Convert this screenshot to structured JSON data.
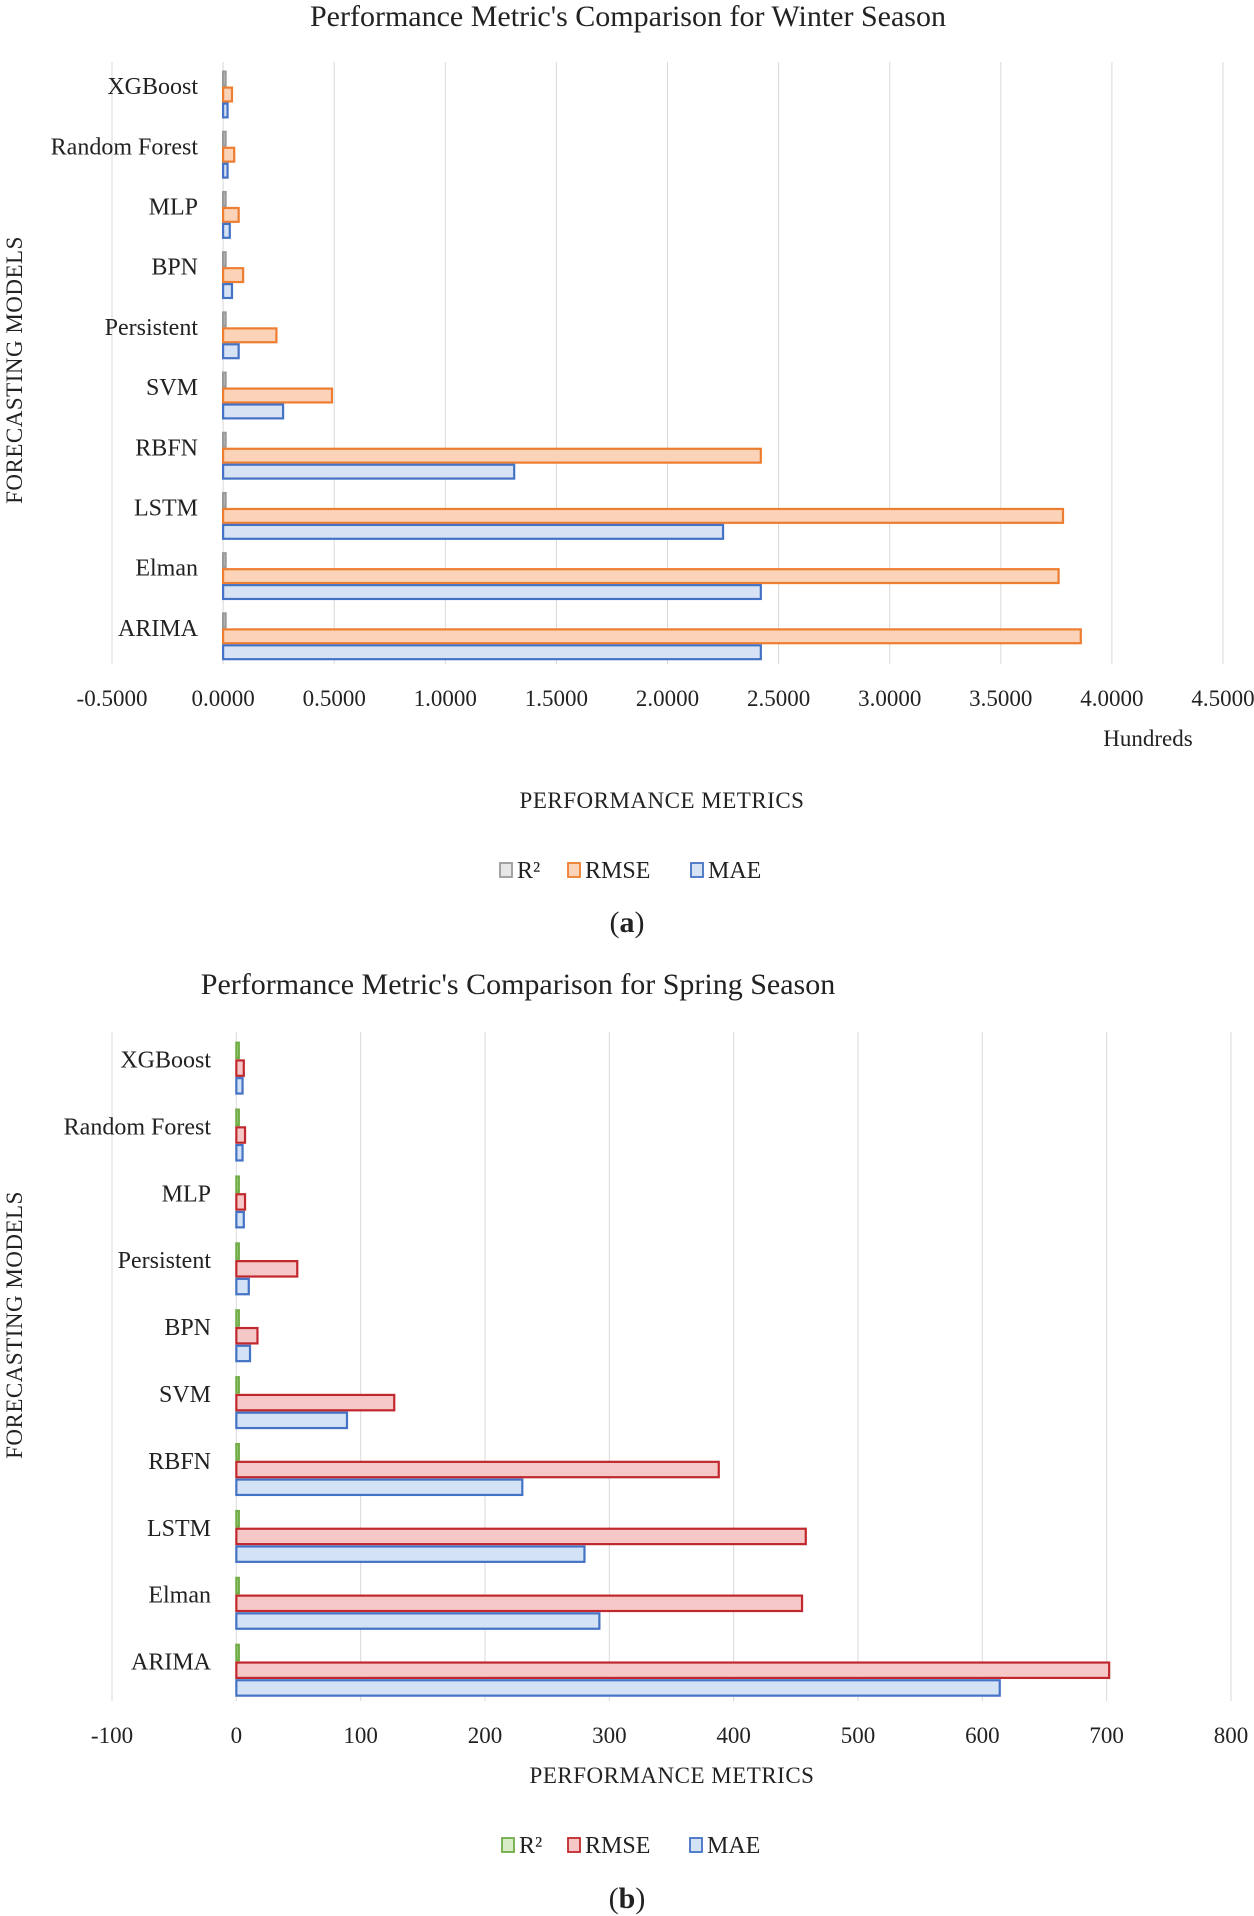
{
  "chart_data": [
    {
      "type": "bar",
      "orientation": "horizontal",
      "title": "Performance Metric's  Comparison for Winter Season",
      "categories": [
        "ARIMA",
        "Elman",
        "LSTM",
        "RBFN",
        "SVM",
        "Persistent",
        "BPN",
        "MLP",
        "Random Forest",
        "XGBoost"
      ],
      "series": [
        {
          "name": "R²",
          "values": [
            0.0,
            0.0,
            0.0,
            0.0,
            0.0,
            0.0,
            0.0,
            0.0,
            0.0,
            0.0
          ],
          "fill": "#e7e7e7",
          "stroke": "#9a9a9a"
        },
        {
          "name": "RMSE",
          "values": [
            3.86,
            3.76,
            3.78,
            2.42,
            0.49,
            0.24,
            0.09,
            0.07,
            0.05,
            0.04
          ],
          "fill": "#fbd3b8",
          "stroke": "#ed7d31"
        },
        {
          "name": "MAE",
          "values": [
            2.42,
            2.42,
            2.25,
            1.31,
            0.27,
            0.07,
            0.04,
            0.03,
            0.02,
            0.02
          ],
          "fill": "#d7e3f4",
          "stroke": "#4472c4"
        }
      ],
      "xlabel": "PERFORMANCE METRICS",
      "ylabel": "FORECASTING MODELS",
      "x_units": "Hundreds",
      "xlim": [
        -0.5,
        4.5
      ],
      "xticks": [
        "-0.5000",
        "0.0000",
        "0.5000",
        "1.0000",
        "1.5000",
        "2.0000",
        "2.5000",
        "3.0000",
        "3.5000",
        "4.0000",
        "4.5000"
      ],
      "grid": "vertical",
      "legend": "bottom",
      "panel_label": "a"
    },
    {
      "type": "bar",
      "orientation": "horizontal",
      "title": "Performance Metric's  Comparison for Spring Season",
      "categories": [
        "ARIMA",
        "Elman",
        "LSTM",
        "RBFN",
        "SVM",
        "BPN",
        "Persistent",
        "MLP",
        "Random Forest",
        "XGBoost"
      ],
      "series": [
        {
          "name": "R²",
          "values": [
            0.8,
            0.8,
            0.8,
            0.8,
            0.8,
            0.8,
            0.8,
            0.8,
            0.8,
            0.8
          ],
          "fill": "#d9ecc8",
          "stroke": "#70ad47"
        },
        {
          "name": "RMSE",
          "values": [
            702,
            455,
            458,
            388,
            127,
            17,
            49,
            7,
            7,
            6
          ],
          "fill": "#f6c7c7",
          "stroke": "#c0282d"
        },
        {
          "name": "MAE",
          "values": [
            614,
            292,
            280,
            230,
            89,
            11,
            10,
            6,
            5,
            5
          ],
          "fill": "#d3e2f5",
          "stroke": "#4472c4"
        }
      ],
      "xlabel": "PERFORMANCE METRICS",
      "ylabel": "FORECASTING MODELS",
      "xlim": [
        -100,
        800
      ],
      "xticks": [
        "-100",
        "0",
        "100",
        "200",
        "300",
        "400",
        "500",
        "600",
        "700",
        "800"
      ],
      "grid": "vertical",
      "legend": "bottom",
      "panel_label": "b"
    }
  ]
}
